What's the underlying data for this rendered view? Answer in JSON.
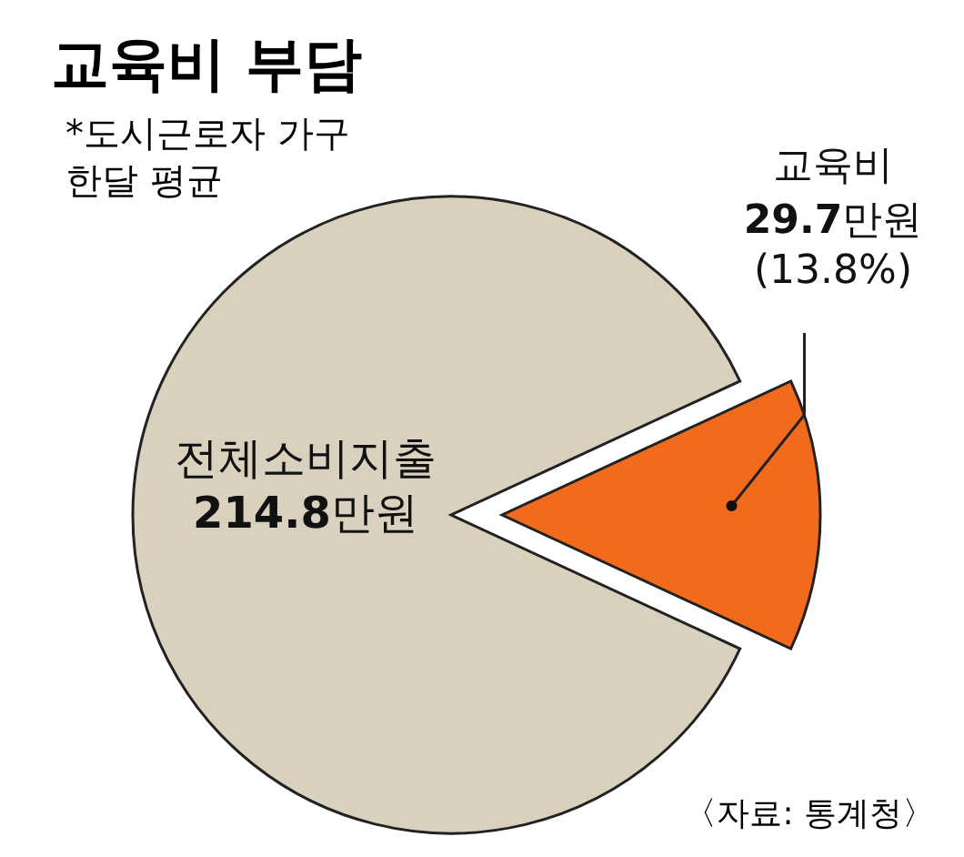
{
  "chart_data": {
    "type": "pie",
    "title": "교육비 부담",
    "subtitle": "*도시근로자 가구 한달 평균",
    "categories": [
      null,
      "교육비"
    ],
    "values": [
      86.2,
      13.8
    ],
    "colors": [
      "#d9d1bd",
      "#f26a1b"
    ],
    "value_labels": [
      null,
      "29.7만원 (13.8%)"
    ],
    "annotations": [
      "전체소비지출 214.8만원",
      "〈자료: 통계청〉"
    ]
  }
}
